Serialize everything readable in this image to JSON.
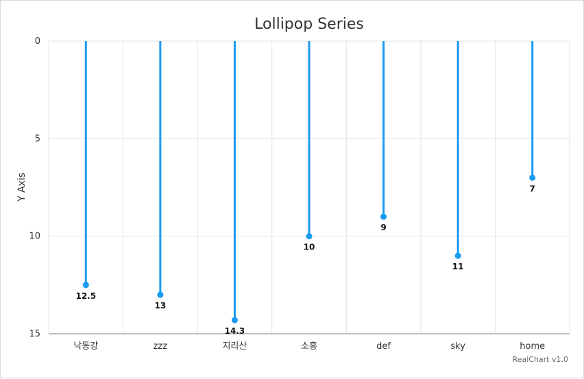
{
  "chart_data": {
    "type": "lollipop",
    "title": "Lollipop Series",
    "ylabel": "Y Axis",
    "xlabel": "",
    "categories": [
      "낙동강",
      "zzz",
      "지리산",
      "소홍",
      "def",
      "sky",
      "home"
    ],
    "values": [
      12.5,
      13,
      14.3,
      10,
      9,
      11,
      7
    ],
    "value_labels": [
      "12.5",
      "13",
      "14.3",
      "10",
      "9",
      "11",
      "7"
    ],
    "ylim": [
      0,
      15
    ],
    "y_reversed": true,
    "yticks": [
      0,
      5,
      10,
      15
    ],
    "grid": true,
    "legend": "none",
    "series_color": "#1a9af0"
  },
  "credit": "RealChart v1.0"
}
